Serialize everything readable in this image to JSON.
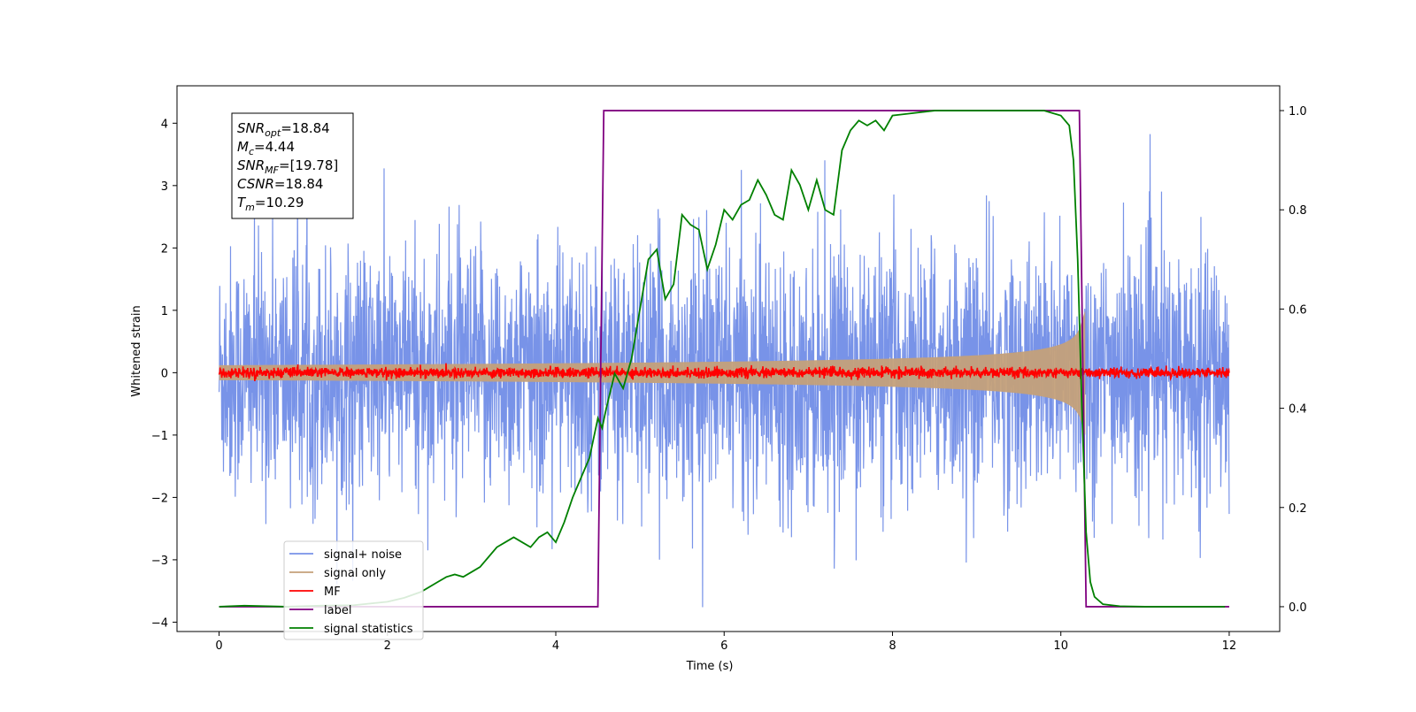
{
  "chart_data": {
    "type": "line",
    "xlabel": "Time (s)",
    "ylabel": "Whitened strain",
    "xlim": [
      -0.5,
      12.6
    ],
    "ylim": [
      -4.15,
      4.6
    ],
    "y2lim": [
      -0.05,
      1.05
    ],
    "x_ticks": [
      0,
      2,
      4,
      6,
      8,
      10,
      12
    ],
    "y_ticks": [
      -4,
      -3,
      -2,
      -1,
      0,
      1,
      2,
      3,
      4
    ],
    "y2_ticks": [
      0.0,
      0.2,
      0.4,
      0.6,
      0.8,
      1.0
    ],
    "x_tick_labels": [
      "0",
      "2",
      "4",
      "6",
      "8",
      "10",
      "12"
    ],
    "y_tick_labels": [
      "−4",
      "−3",
      "−2",
      "−1",
      "0",
      "1",
      "2",
      "3",
      "4"
    ],
    "y2_tick_labels": [
      "0.0",
      "0.2",
      "0.4",
      "0.6",
      "0.8",
      "1.0"
    ],
    "grid": false,
    "legend_position": "lower-left",
    "annotations": [
      {
        "name": "SNR",
        "sub": "opt",
        "value": "=18.84"
      },
      {
        "name": "M",
        "sub": "c",
        "value": "=4.44"
      },
      {
        "name": "SNR",
        "sub": "MF",
        "value": "=[19.78]"
      },
      {
        "name": "CSNR",
        "sub": "",
        "value": "=18.84"
      },
      {
        "name": "T",
        "sub": "m",
        "value": "=10.29"
      }
    ],
    "series": [
      {
        "name": "signal+ noise",
        "color": "#7893e8",
        "axis": "left",
        "kind": "noise",
        "x_range": [
          0,
          12
        ],
        "std": 1.0
      },
      {
        "name": "signal only",
        "color": "#c4a07a",
        "axis": "left",
        "kind": "chirp-envelope",
        "x_range": [
          0,
          10.29
        ],
        "start_amplitude": 0.12,
        "end_amplitude": 1.0
      },
      {
        "name": "MF",
        "color": "#ff0000",
        "axis": "left",
        "kind": "noise",
        "x_range": [
          0,
          12
        ],
        "std": 0.04
      },
      {
        "name": "label",
        "color": "#800080",
        "axis": "right",
        "kind": "step",
        "x": [
          0,
          4.5,
          4.57,
          10.22,
          10.3,
          12
        ],
        "y": [
          0,
          0,
          1,
          1,
          0,
          0
        ]
      },
      {
        "name": "signal statistics",
        "color": "#008000",
        "axis": "right",
        "kind": "line",
        "x": [
          0,
          0.3,
          0.8,
          1.2,
          1.6,
          2.0,
          2.2,
          2.4,
          2.6,
          2.7,
          2.8,
          2.9,
          3.0,
          3.1,
          3.2,
          3.3,
          3.4,
          3.5,
          3.6,
          3.7,
          3.8,
          3.9,
          4.0,
          4.1,
          4.2,
          4.3,
          4.4,
          4.5,
          4.55,
          4.6,
          4.7,
          4.8,
          4.9,
          5.0,
          5.1,
          5.2,
          5.3,
          5.4,
          5.5,
          5.6,
          5.7,
          5.8,
          5.9,
          6.0,
          6.1,
          6.2,
          6.3,
          6.4,
          6.5,
          6.6,
          6.7,
          6.8,
          6.9,
          7.0,
          7.1,
          7.2,
          7.3,
          7.4,
          7.5,
          7.6,
          7.7,
          7.8,
          7.9,
          8.0,
          8.5,
          9.0,
          9.5,
          9.8,
          10.0,
          10.1,
          10.15,
          10.2,
          10.25,
          10.3,
          10.35,
          10.4,
          10.5,
          10.7,
          11.0,
          11.5,
          11.95
        ],
        "y": [
          0.0,
          0.002,
          0.0,
          0.002,
          0.003,
          0.01,
          0.018,
          0.03,
          0.05,
          0.06,
          0.065,
          0.06,
          0.07,
          0.08,
          0.1,
          0.12,
          0.13,
          0.14,
          0.13,
          0.12,
          0.14,
          0.15,
          0.13,
          0.17,
          0.22,
          0.26,
          0.3,
          0.38,
          0.36,
          0.4,
          0.47,
          0.44,
          0.5,
          0.6,
          0.7,
          0.72,
          0.62,
          0.65,
          0.79,
          0.77,
          0.76,
          0.68,
          0.73,
          0.8,
          0.78,
          0.81,
          0.82,
          0.86,
          0.83,
          0.79,
          0.78,
          0.88,
          0.85,
          0.8,
          0.86,
          0.8,
          0.79,
          0.92,
          0.96,
          0.98,
          0.97,
          0.98,
          0.96,
          0.99,
          1.0,
          1.0,
          1.0,
          1.0,
          0.99,
          0.97,
          0.9,
          0.7,
          0.4,
          0.15,
          0.05,
          0.02,
          0.005,
          0.001,
          0.0,
          0.0,
          0.0
        ]
      }
    ]
  }
}
